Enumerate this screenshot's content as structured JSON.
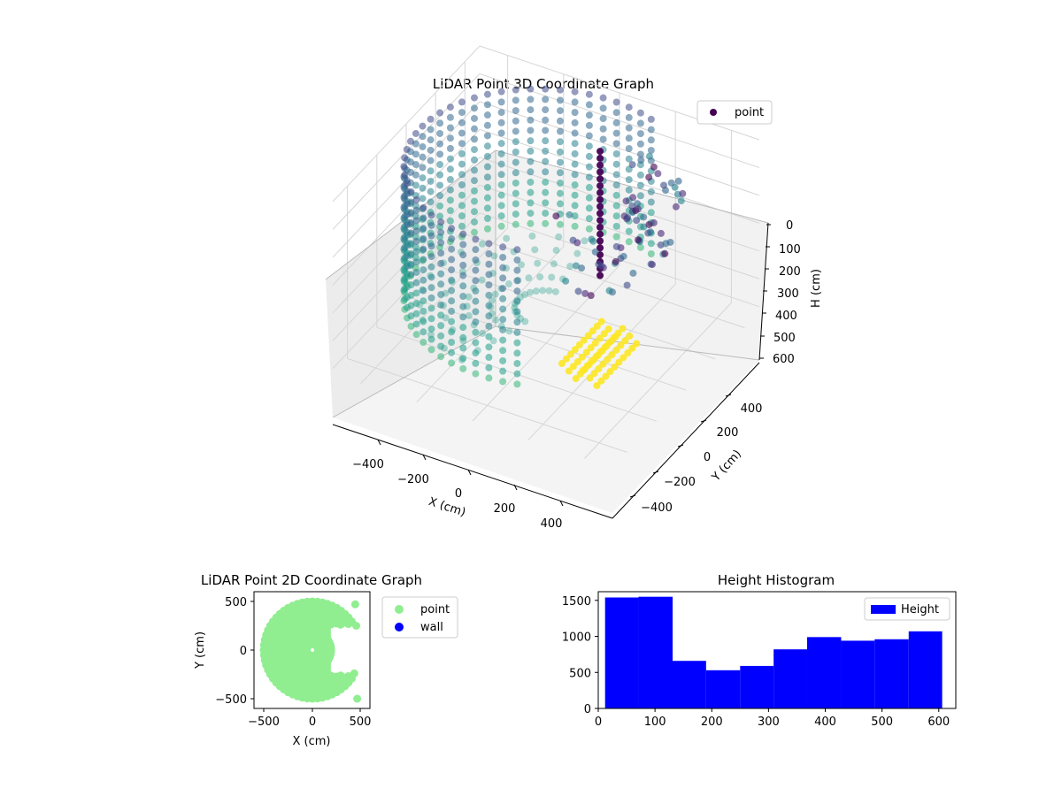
{
  "chart_data": [
    {
      "type": "scatter",
      "projection": "3d",
      "title": "LiDAR Point 3D Coordinate Graph",
      "xlabel": "X (cm)",
      "ylabel": "Y (cm)",
      "zlabel": "H (cm)",
      "xlim": [
        -520,
        520
      ],
      "ylim": [
        -520,
        520
      ],
      "zlim": [
        0,
        620
      ],
      "z_inverted": true,
      "xticks": [
        "−400",
        "−200",
        "0",
        "200",
        "400"
      ],
      "yticks": [
        "−400",
        "−200",
        "0",
        "200",
        "400"
      ],
      "zticks": [
        "0",
        "100",
        "200",
        "300",
        "400",
        "500",
        "600"
      ],
      "colormap": "viridis",
      "grid": true,
      "legend": {
        "position": "top-right",
        "entries": [
          {
            "label": "point",
            "color": "#440154"
          }
        ]
      },
      "series": [
        {
          "name": "point",
          "shape": "partial cylindrical wall of points, radius about 500 cm, open on the +X side, points colored by height",
          "approx_points": 10000
        }
      ]
    },
    {
      "type": "scatter",
      "title": "LiDAR Point 2D Coordinate Graph",
      "xlabel": "X (cm)",
      "ylabel": "Y (cm)",
      "xlim": [
        -600,
        600
      ],
      "ylim": [
        -600,
        600
      ],
      "xticks": [
        "−500",
        "0",
        "500"
      ],
      "yticks": [
        "−500",
        "0",
        "500"
      ],
      "legend": {
        "position": "outside-right",
        "entries": [
          {
            "label": "point",
            "color": "#90ee90"
          },
          {
            "label": "wall",
            "color": "#0000ff"
          }
        ]
      },
      "series": [
        {
          "name": "point",
          "color": "#90ee90",
          "shape": "filled disc of radius about 500 cm with a notch on the +X side"
        },
        {
          "name": "wall",
          "color": "#0000ff",
          "points": []
        }
      ]
    },
    {
      "type": "bar",
      "histogram": true,
      "title": "Height Histogram",
      "xlim": [
        0,
        630
      ],
      "ylim": [
        0,
        1620
      ],
      "xticks": [
        "0",
        "100",
        "200",
        "300",
        "400",
        "500",
        "600"
      ],
      "yticks": [
        "0",
        "500",
        "1000",
        "1500"
      ],
      "color": "#0000ff",
      "legend": {
        "position": "top-right",
        "entries": [
          {
            "label": "Height",
            "color": "#0000ff"
          }
        ]
      },
      "bin_edges": [
        12,
        71,
        131,
        190,
        250,
        309,
        368,
        428,
        487,
        547,
        606
      ],
      "values": [
        1540,
        1550,
        660,
        530,
        590,
        820,
        990,
        940,
        960,
        1070
      ]
    }
  ]
}
